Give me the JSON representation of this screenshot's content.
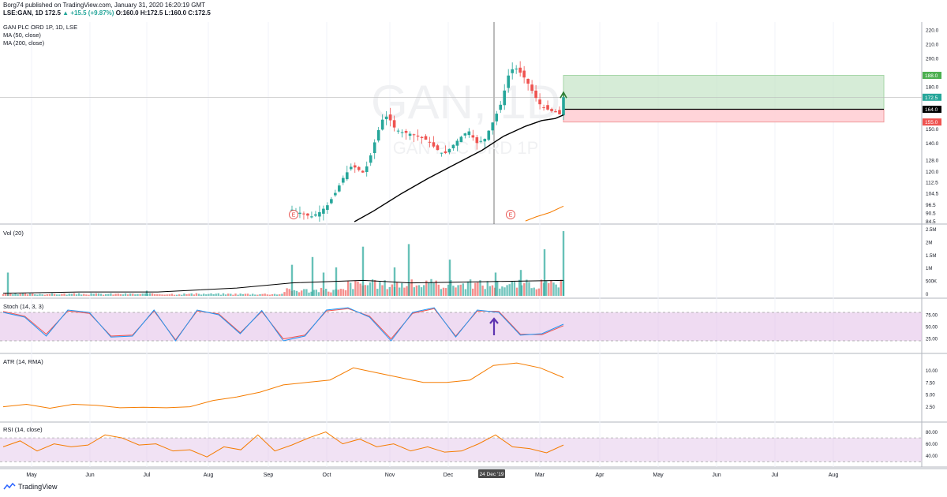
{
  "header": {
    "publisher": "Borg74 published on TradingView.com, January 31, 2020 16:20:19 GMT",
    "symbol": "LSE:GAN, 1D",
    "last": "172.5",
    "change": "▲ +15.5 (+9.87%)",
    "ohlc": "O:160.0 H:172.5 L:160.0 C:172.5"
  },
  "footer": {
    "brand": "TradingView"
  },
  "watermark": {
    "ticker": "GAN, 1D",
    "name": "GAN PLC ORD 1P"
  },
  "colors": {
    "up": "#26a69a",
    "down": "#ef5350",
    "stoch_k": "#2196f3",
    "stoch_d": "#ef5350",
    "atr": "#f57c00",
    "rsi": "#f57c00",
    "ma50": "#000000",
    "ma200": "#f57c00",
    "band": "#e1bee7",
    "target": "#c8e6c9",
    "stop": "#ffcdd2"
  },
  "chart_data": [
    {
      "type": "candlestick",
      "title": "GAN PLC ORD 1P, 1D, LSE",
      "legend": [
        "MA (50, close)",
        "MA (200, close)"
      ],
      "ylim": [
        84.5,
        224
      ],
      "y_ticks": [
        "220.0",
        "210.0",
        "200.0",
        "188.0",
        "180.0",
        "172.5",
        "164.0",
        "155.0",
        "150.0",
        "140.0",
        "128.0",
        "120.0",
        "112.5",
        "104.5",
        "96.5",
        "90.5",
        "84.5"
      ],
      "x_ticks": [
        "May",
        "Jun",
        "Jul",
        "Aug",
        "Sep",
        "Oct",
        "Nov",
        "Dec",
        "24 Dec '19",
        "Mar",
        "Apr",
        "May",
        "Jun",
        "Jul",
        "Aug"
      ],
      "price_labels": {
        "target": "188.0",
        "last": "172.5",
        "entry": "164.0",
        "stop": "155.0"
      },
      "position": {
        "entry": 164.0,
        "target": 188.0,
        "stop": 155.0
      },
      "series": [
        {
          "name": "price",
          "points": [
            [
              0.0,
              93.0
            ],
            [
              0.02,
              91.5
            ],
            [
              0.04,
              90.0
            ],
            [
              0.07,
              88.0
            ],
            [
              0.1,
              91.0
            ],
            [
              0.13,
              96.0
            ],
            [
              0.16,
              105.0
            ],
            [
              0.19,
              116.0
            ],
            [
              0.22,
              124.0
            ],
            [
              0.24,
              122.0
            ],
            [
              0.26,
              119.0
            ],
            [
              0.28,
              125.0
            ],
            [
              0.3,
              138.0
            ],
            [
              0.32,
              150.0
            ],
            [
              0.34,
              160.0
            ],
            [
              0.36,
              157.0
            ],
            [
              0.38,
              150.0
            ],
            [
              0.4,
              148.0
            ],
            [
              0.43,
              147.0
            ],
            [
              0.46,
              145.0
            ],
            [
              0.5,
              142.0
            ],
            [
              0.53,
              136.0
            ],
            [
              0.56,
              132.0
            ],
            [
              0.59,
              138.0
            ],
            [
              0.62,
              144.0
            ],
            [
              0.65,
              149.0
            ],
            [
              0.68,
              140.0
            ],
            [
              0.71,
              143.0
            ],
            [
              0.74,
              155.0
            ],
            [
              0.77,
              168.0
            ],
            [
              0.8,
              190.0
            ],
            [
              0.82,
              194.0
            ],
            [
              0.85,
              188.0
            ],
            [
              0.87,
              182.0
            ],
            [
              0.89,
              175.0
            ],
            [
              0.91,
              168.0
            ],
            [
              0.93,
              165.0
            ],
            [
              0.95,
              163.0
            ],
            [
              0.97,
              162.0
            ],
            [
              0.99,
              160.0
            ],
            [
              1.0,
              172.5
            ]
          ]
        },
        {
          "name": "MA (50, close)",
          "points": [
            [
              0.23,
              84.5
            ],
            [
              0.3,
              92.0
            ],
            [
              0.4,
              104.0
            ],
            [
              0.5,
              115.0
            ],
            [
              0.6,
              125.0
            ],
            [
              0.7,
              135.0
            ],
            [
              0.78,
              145.0
            ],
            [
              0.86,
              152.0
            ],
            [
              0.92,
              156.0
            ],
            [
              0.97,
              157.5
            ],
            [
              1.0,
              160.0
            ]
          ]
        },
        {
          "name": "MA (200, close)",
          "points": [
            [
              0.86,
              85.0
            ],
            [
              0.9,
              88.0
            ],
            [
              0.95,
              91.0
            ],
            [
              1.0,
              95.5
            ]
          ]
        }
      ],
      "event_markers": [
        "E",
        "E"
      ]
    },
    {
      "type": "bar",
      "title": "Vol (20)",
      "y_ticks": [
        "2.5M",
        "2M",
        "1.5M",
        "1M",
        "500K",
        "0"
      ],
      "ylim": [
        0,
        2.5
      ],
      "spikes_millions": [
        0.9,
        0.2,
        1.2,
        1.5,
        0.9,
        1.1,
        1.9,
        1.1,
        2.0,
        1.4,
        0.9,
        1.0,
        1.8,
        2.5
      ],
      "ma_millions": [
        0.1,
        0.15,
        0.15,
        0.3,
        0.5,
        0.6,
        0.5,
        0.55,
        0.6
      ]
    },
    {
      "type": "line",
      "title": "Stoch (14, 3, 3)",
      "y_ticks": [
        "75.00",
        "50.00",
        "25.00"
      ],
      "ylim": [
        0,
        100
      ],
      "band": [
        20,
        80
      ],
      "k": [
        80,
        70,
        30,
        85,
        80,
        28,
        30,
        85,
        20,
        85,
        75,
        35,
        84,
        20,
        30,
        85,
        90,
        70,
        20,
        80,
        90,
        28,
        85,
        80,
        32,
        35,
        55
      ],
      "d": [
        82,
        72,
        34,
        83,
        78,
        30,
        32,
        83,
        22,
        83,
        77,
        37,
        82,
        24,
        32,
        83,
        88,
        72,
        24,
        78,
        88,
        30,
        83,
        82,
        34,
        33,
        52
      ]
    },
    {
      "type": "line",
      "title": "ATR (14, RMA)",
      "y_ticks": [
        "10.00",
        "7.50",
        "5.00",
        "2.50"
      ],
      "ylim": [
        0,
        12.5
      ],
      "values": [
        2.5,
        3.0,
        2.2,
        3.0,
        2.8,
        2.3,
        2.4,
        2.3,
        2.5,
        3.8,
        4.5,
        5.5,
        7.0,
        7.5,
        8.0,
        10.5,
        9.5,
        8.5,
        7.5,
        7.5,
        8.0,
        11.0,
        11.5,
        10.5,
        8.5
      ]
    },
    {
      "type": "line",
      "title": "RSI (14, close)",
      "y_ticks": [
        "80.00",
        "60.00",
        "40.00"
      ],
      "ylim": [
        25,
        90
      ],
      "band": [
        30,
        70
      ],
      "values": [
        55,
        65,
        48,
        60,
        55,
        58,
        75,
        70,
        58,
        60,
        48,
        50,
        38,
        55,
        50,
        75,
        48,
        58,
        70,
        80,
        60,
        68,
        55,
        60,
        48,
        55,
        46,
        48,
        60,
        75,
        55,
        52,
        45,
        58
      ]
    }
  ]
}
